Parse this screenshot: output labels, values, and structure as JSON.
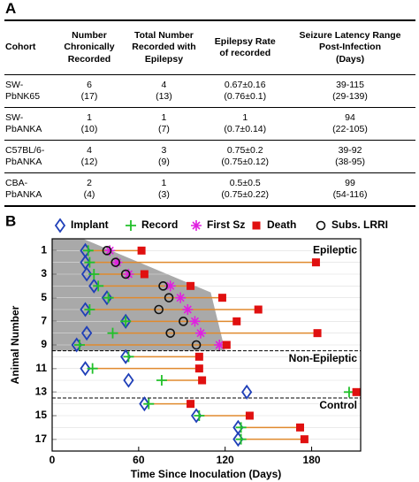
{
  "panel_a": {
    "label": "A",
    "table": {
      "header": [
        [
          "Cohort"
        ],
        [
          "Number",
          "Chronically",
          "Recorded"
        ],
        [
          "Total Number",
          "Recorded with",
          "Epilepsy"
        ],
        [
          "Epilepsy Rate",
          "of recorded"
        ],
        [
          "Seizure Latency Range",
          "Post-Infection",
          "(Days)"
        ]
      ],
      "rows": [
        [
          [
            "SW-",
            "PbNK65"
          ],
          [
            "6",
            "(17)"
          ],
          [
            "4",
            "(13)"
          ],
          [
            "0.67±0.16",
            "(0.76±0.1)"
          ],
          [
            "39-115",
            "(29-139)"
          ]
        ],
        [
          [
            "SW-",
            "PbANKA"
          ],
          [
            "1",
            "(10)"
          ],
          [
            "1",
            "(7)"
          ],
          [
            "1",
            "(0.7±0.14)"
          ],
          [
            "94",
            "(22-105)"
          ]
        ],
        [
          [
            "C57BL/6-",
            "PbANKA"
          ],
          [
            "4",
            "(12)"
          ],
          [
            "3",
            "(9)"
          ],
          [
            "0.75±0.2",
            "(0.75±0.12)"
          ],
          [
            "39-92",
            "(38-95)"
          ]
        ],
        [
          [
            "CBA-",
            "PbANKA"
          ],
          [
            "2",
            "(4)"
          ],
          [
            "1",
            "(3)"
          ],
          [
            "0.5±0.5",
            "(0.75±0.22)"
          ],
          [
            "99",
            "(54-116)"
          ]
        ]
      ]
    }
  },
  "panel_b": {
    "label": "B",
    "chart_data": {
      "type": "dot-range",
      "x_label": "Time Since Inoculation (Days)",
      "y_label": "Animal Number",
      "y": [
        1,
        2,
        3,
        4,
        5,
        6,
        7,
        8,
        9,
        10,
        11,
        12,
        13,
        14,
        15,
        16,
        17
      ],
      "xlim": [
        0,
        214
      ],
      "xticks": [
        0,
        60,
        120,
        180
      ],
      "ylim": [
        0,
        18
      ],
      "yticks": [
        1,
        3,
        5,
        7,
        9,
        11,
        13,
        15,
        17
      ],
      "y_inverted": true,
      "annotations": [
        "Epileptic",
        "Non-Epileptic",
        "Control"
      ],
      "range_color": "#e08a2e",
      "series": [
        {
          "name": "Implant",
          "marker": "diamond",
          "color": "#1f3fb8",
          "values": [
            23,
            23,
            24,
            29,
            38,
            23,
            51,
            24,
            17,
            51,
            23,
            53,
            135,
            64,
            100,
            129,
            129
          ]
        },
        {
          "name": "Record",
          "marker": "plus",
          "color": "#22c02a",
          "values": [
            25,
            26,
            29,
            32,
            39,
            26,
            51,
            42,
            19,
            53,
            28,
            76,
            206,
            67,
            102,
            131,
            131
          ]
        },
        {
          "name": "First Sz",
          "marker": "asterisk",
          "color": "#e020e0",
          "values": [
            40,
            45,
            53,
            82,
            89,
            94,
            99,
            103,
            116,
            null,
            null,
            null,
            null,
            null,
            null,
            null,
            null
          ]
        },
        {
          "name": "Death",
          "marker": "square",
          "color": "#e01010",
          "values": [
            62,
            183,
            64,
            96,
            118,
            143,
            128,
            184,
            121,
            102,
            102,
            104,
            211,
            96,
            137,
            172,
            175
          ]
        },
        {
          "name": "Subs. LRRI",
          "marker": "circle",
          "color": "#111111",
          "values": [
            38,
            44,
            51,
            77,
            81,
            74,
            91,
            82,
            100,
            null,
            null,
            null,
            null,
            null,
            null,
            null,
            null
          ]
        }
      ]
    }
  }
}
